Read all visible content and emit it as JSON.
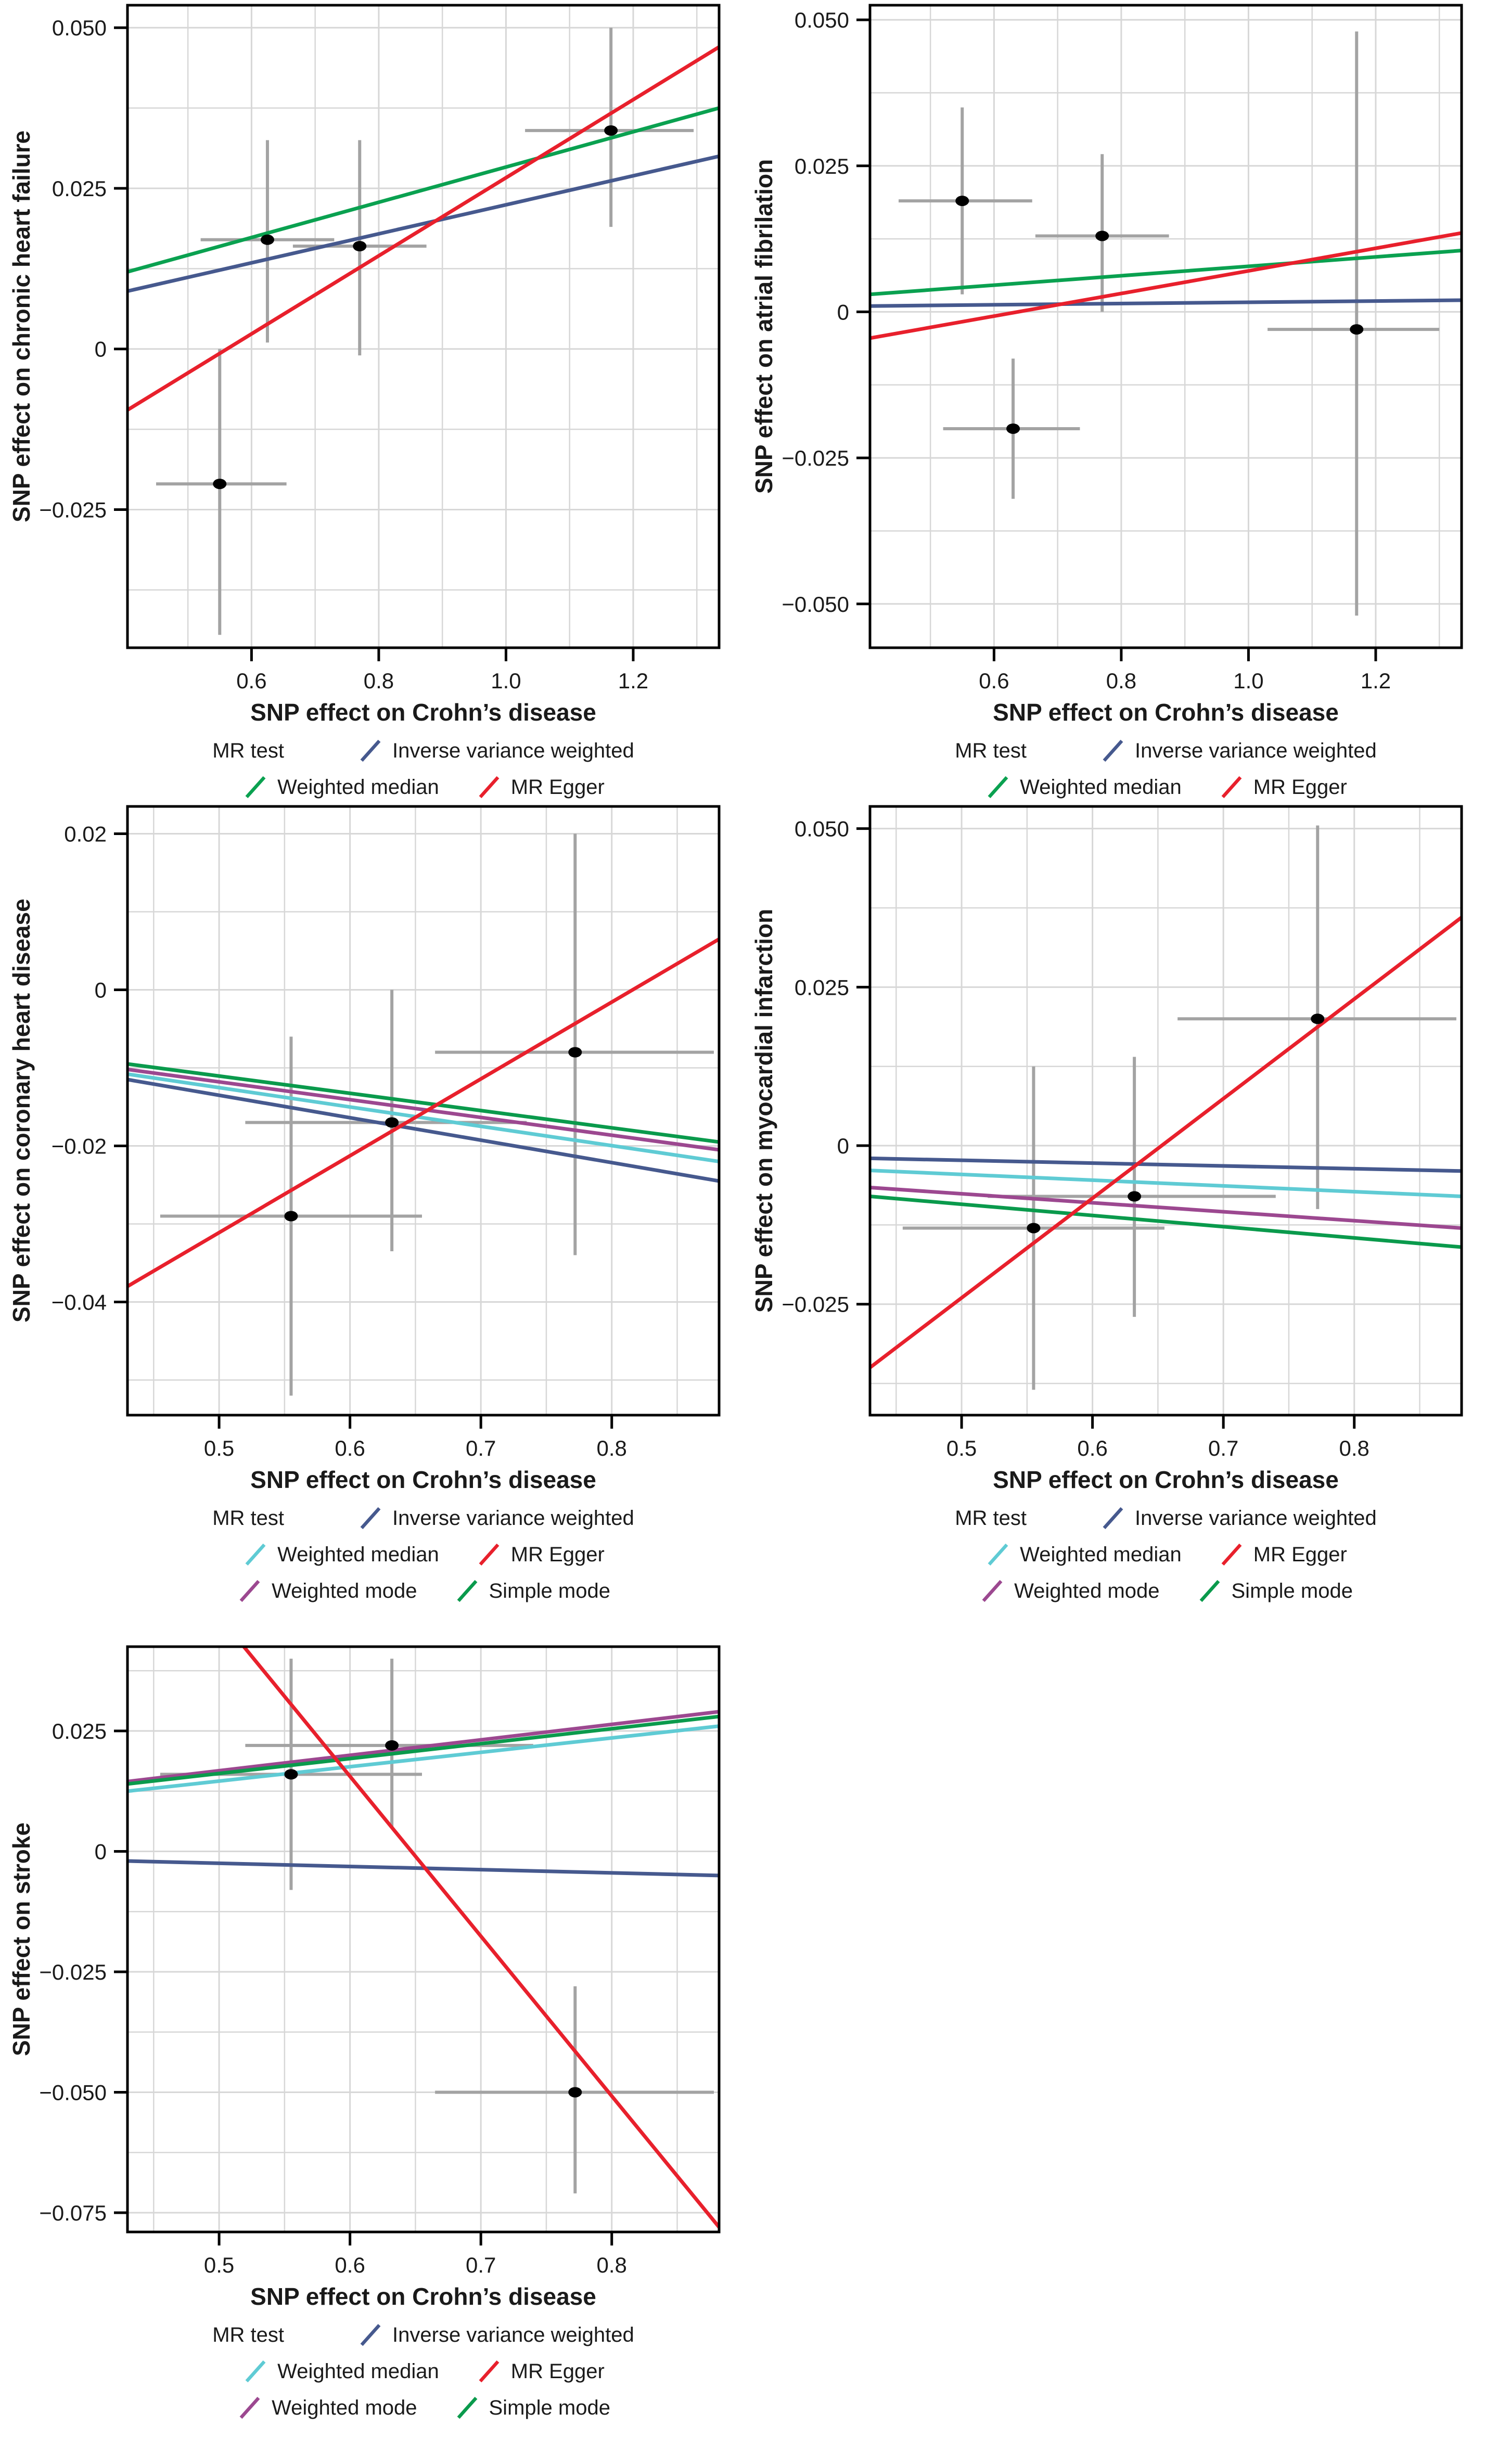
{
  "figure": {
    "background": "#ffffff",
    "description": "Scatter plots of SNP effects: Mendelian randomization tests of Crohn's disease on five cardiovascular outcomes"
  },
  "colors": {
    "ivw": "#46598E",
    "weighted_median_green": "#0AA150",
    "weighted_median_cyan": "#5FCBD4",
    "mr_egger": "#E8202C",
    "weighted_mode": "#9C4890",
    "simple_mode": "#0A9A4C",
    "error_bar": "#A3A3A3",
    "point": "#000000",
    "grid": "#D7D7D7",
    "panel_border": "#000000",
    "text": "#1A1A1A"
  },
  "chart_data": [
    {
      "name": "chronic-heart-failure",
      "type": "scatter",
      "xlabel": "SNP effect on Crohn’s disease",
      "ylabel": "SNP effect on chronic heart failure",
      "legend_title": "MR test",
      "grid": true,
      "legend_position": "bottom",
      "xlim": [
        0.405,
        1.335
      ],
      "ylim": [
        -0.0465,
        0.0535
      ],
      "xticks": [
        0.6,
        0.8,
        1.0,
        1.2
      ],
      "xtick_labels": [
        "0.6",
        "0.8",
        "1.0",
        "1.2"
      ],
      "yticks": [
        0.05,
        0.025,
        0,
        -0.025
      ],
      "ytick_labels": [
        "0.050",
        "0.025",
        "0",
        "−0.025"
      ],
      "points": [
        {
          "x": 0.55,
          "y": -0.021,
          "xlo": 0.45,
          "xhi": 0.655,
          "ylo": -0.0445,
          "yhi": 0.0
        },
        {
          "x": 0.625,
          "y": 0.017,
          "xlo": 0.52,
          "xhi": 0.73,
          "ylo": 0.001,
          "yhi": 0.0325
        },
        {
          "x": 0.77,
          "y": 0.016,
          "xlo": 0.665,
          "xhi": 0.875,
          "ylo": -0.001,
          "yhi": 0.0325
        },
        {
          "x": 1.165,
          "y": 0.034,
          "xlo": 1.03,
          "xhi": 1.295,
          "ylo": 0.019,
          "yhi": 0.05
        }
      ],
      "lines": [
        {
          "label": "Inverse variance weighted",
          "color": "#46598E",
          "y_start": 0.009,
          "y_end": 0.03
        },
        {
          "label": "Weighted median",
          "color": "#0AA150",
          "y_start": 0.012,
          "y_end": 0.0375
        },
        {
          "label": "MR Egger",
          "color": "#E8202C",
          "y_start": -0.0095,
          "y_end": 0.047
        }
      ]
    },
    {
      "name": "atrial-fibrilation",
      "type": "scatter",
      "xlabel": "SNP effect on Crohn’s disease",
      "ylabel": "SNP effect on atrial fibrilation",
      "legend_title": "MR test",
      "grid": true,
      "legend_position": "bottom",
      "xlim": [
        0.405,
        1.335
      ],
      "ylim": [
        -0.0575,
        0.0525
      ],
      "xticks": [
        0.6,
        0.8,
        1.0,
        1.2
      ],
      "xtick_labels": [
        "0.6",
        "0.8",
        "1.0",
        "1.2"
      ],
      "yticks": [
        0.05,
        0.025,
        0,
        -0.025,
        -0.05
      ],
      "ytick_labels": [
        "0.050",
        "0.025",
        "0",
        "−0.025",
        "−0.050"
      ],
      "points": [
        {
          "x": 0.55,
          "y": 0.019,
          "xlo": 0.45,
          "xhi": 0.66,
          "ylo": 0.003,
          "yhi": 0.035
        },
        {
          "x": 0.63,
          "y": -0.02,
          "xlo": 0.52,
          "xhi": 0.735,
          "ylo": -0.032,
          "yhi": -0.008
        },
        {
          "x": 0.77,
          "y": 0.013,
          "xlo": 0.665,
          "xhi": 0.875,
          "ylo": 0.0,
          "yhi": 0.027
        },
        {
          "x": 1.17,
          "y": -0.003,
          "xlo": 1.03,
          "xhi": 1.3,
          "ylo": -0.052,
          "yhi": 0.048
        }
      ],
      "lines": [
        {
          "label": "Inverse variance weighted",
          "color": "#46598E",
          "y_start": 0.001,
          "y_end": 0.002
        },
        {
          "label": "Weighted median",
          "color": "#0AA150",
          "y_start": 0.003,
          "y_end": 0.0105
        },
        {
          "label": "MR Egger",
          "color": "#E8202C",
          "y_start": -0.0045,
          "y_end": 0.0135
        }
      ]
    },
    {
      "name": "coronary-heart-disease",
      "type": "scatter",
      "xlabel": "SNP effect on Crohn’s disease",
      "ylabel": "SNP effect on coronary heart disease",
      "legend_title": "MR test",
      "grid": true,
      "legend_position": "bottom",
      "xlim": [
        0.43,
        0.882
      ],
      "ylim": [
        -0.0545,
        0.0235
      ],
      "xticks": [
        0.5,
        0.6,
        0.7,
        0.8
      ],
      "xtick_labels": [
        "0.5",
        "0.6",
        "0.7",
        "0.8"
      ],
      "yticks": [
        0.02,
        0,
        -0.02,
        -0.04
      ],
      "ytick_labels": [
        "0.02",
        "0",
        "−0.02",
        "−0.04"
      ],
      "points": [
        {
          "x": 0.555,
          "y": -0.029,
          "xlo": 0.455,
          "xhi": 0.655,
          "ylo": -0.052,
          "yhi": -0.006
        },
        {
          "x": 0.632,
          "y": -0.017,
          "xlo": 0.52,
          "xhi": 0.735,
          "ylo": -0.0335,
          "yhi": 0.0
        },
        {
          "x": 0.772,
          "y": -0.008,
          "xlo": 0.665,
          "xhi": 0.878,
          "ylo": -0.034,
          "yhi": 0.02
        }
      ],
      "lines": [
        {
          "label": "Inverse variance weighted",
          "color": "#46598E",
          "y_start": -0.0115,
          "y_end": -0.0245
        },
        {
          "label": "Weighted median",
          "color": "#5FCBD4",
          "y_start": -0.0108,
          "y_end": -0.022
        },
        {
          "label": "MR Egger",
          "color": "#E8202C",
          "y_start": -0.038,
          "y_end": 0.0065
        },
        {
          "label": "Weighted mode",
          "color": "#9C4890",
          "y_start": -0.0102,
          "y_end": -0.0205
        },
        {
          "label": "Simple mode",
          "color": "#0A9A4C",
          "y_start": -0.0095,
          "y_end": -0.0195
        }
      ]
    },
    {
      "name": "myocardial-infarction",
      "type": "scatter",
      "xlabel": "SNP effect on Crohn’s disease",
      "ylabel": "SNP effect on myocardial infarction",
      "legend_title": "MR test",
      "grid": true,
      "legend_position": "bottom",
      "xlim": [
        0.43,
        0.882
      ],
      "ylim": [
        -0.0425,
        0.0535
      ],
      "xticks": [
        0.5,
        0.6,
        0.7,
        0.8
      ],
      "xtick_labels": [
        "0.5",
        "0.6",
        "0.7",
        "0.8"
      ],
      "yticks": [
        0.05,
        0.025,
        0,
        -0.025
      ],
      "ytick_labels": [
        "0.050",
        "0.025",
        "0",
        "−0.025"
      ],
      "points": [
        {
          "x": 0.555,
          "y": -0.013,
          "xlo": 0.455,
          "xhi": 0.655,
          "ylo": -0.0385,
          "yhi": 0.0125
        },
        {
          "x": 0.632,
          "y": -0.008,
          "xlo": 0.52,
          "xhi": 0.74,
          "ylo": -0.027,
          "yhi": 0.014
        },
        {
          "x": 0.772,
          "y": 0.02,
          "xlo": 0.665,
          "xhi": 0.878,
          "ylo": -0.01,
          "yhi": 0.0505
        }
      ],
      "lines": [
        {
          "label": "Inverse variance weighted",
          "color": "#46598E",
          "y_start": -0.002,
          "y_end": -0.004
        },
        {
          "label": "Weighted median",
          "color": "#5FCBD4",
          "y_start": -0.0039,
          "y_end": -0.008
        },
        {
          "label": "MR Egger",
          "color": "#E8202C",
          "y_start": -0.035,
          "y_end": 0.036
        },
        {
          "label": "Weighted mode",
          "color": "#9C4890",
          "y_start": -0.0066,
          "y_end": -0.013
        },
        {
          "label": "Simple mode",
          "color": "#0A9A4C",
          "y_start": -0.008,
          "y_end": -0.016
        }
      ]
    },
    {
      "name": "stroke",
      "type": "scatter",
      "xlabel": "SNP effect on Crohn’s disease",
      "ylabel": "SNP effect on stroke",
      "legend_title": "MR test",
      "grid": true,
      "legend_position": "bottom",
      "xlim": [
        0.43,
        0.882
      ],
      "ylim": [
        -0.079,
        0.0425
      ],
      "xticks": [
        0.5,
        0.6,
        0.7,
        0.8
      ],
      "xtick_labels": [
        "0.5",
        "0.6",
        "0.7",
        "0.8"
      ],
      "yticks": [
        0.025,
        0,
        -0.025,
        -0.05,
        -0.075
      ],
      "ytick_labels": [
        "0.025",
        "0",
        "−0.025",
        "−0.050",
        "−0.075"
      ],
      "points": [
        {
          "x": 0.555,
          "y": 0.016,
          "xlo": 0.455,
          "xhi": 0.655,
          "ylo": -0.008,
          "yhi": 0.04
        },
        {
          "x": 0.632,
          "y": 0.022,
          "xlo": 0.52,
          "xhi": 0.74,
          "ylo": 0.005,
          "yhi": 0.04
        },
        {
          "x": 0.772,
          "y": -0.05,
          "xlo": 0.665,
          "xhi": 0.878,
          "ylo": -0.071,
          "yhi": -0.028
        }
      ],
      "lines": [
        {
          "label": "Inverse variance weighted",
          "color": "#46598E",
          "y_start": -0.002,
          "y_end": -0.005
        },
        {
          "label": "Weighted median",
          "color": "#5FCBD4",
          "y_start": 0.0125,
          "y_end": 0.026
        },
        {
          "label": "MR Egger",
          "color": "#E8202C",
          "y_start": 0.072,
          "y_end": -0.078
        },
        {
          "label": "Weighted mode",
          "color": "#9C4890",
          "y_start": 0.0145,
          "y_end": 0.029
        },
        {
          "label": "Simple mode",
          "color": "#0A9A4C",
          "y_start": 0.014,
          "y_end": 0.028
        }
      ]
    }
  ]
}
